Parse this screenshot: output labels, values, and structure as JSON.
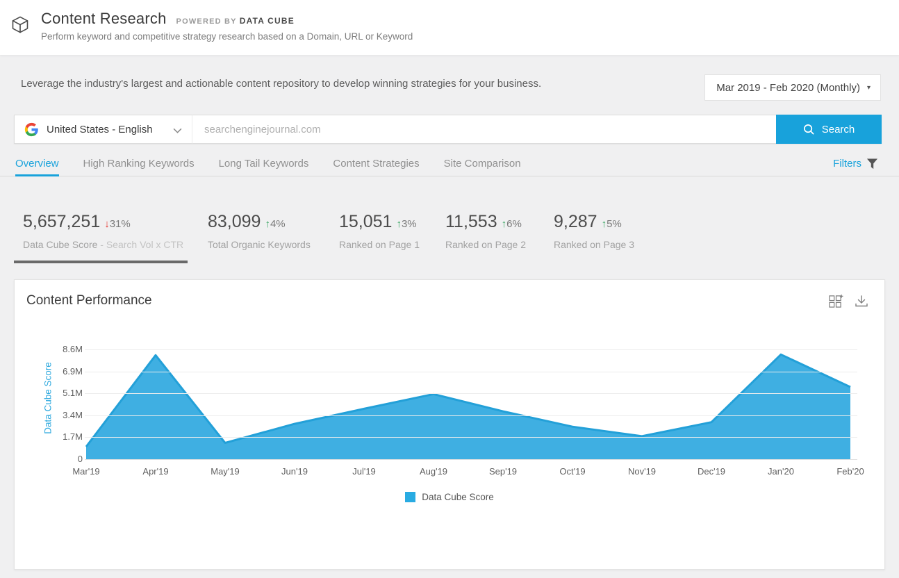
{
  "header": {
    "title": "Content Research",
    "powered_by_prefix": "POWERED BY",
    "powered_by_brand": "DATA CUBE",
    "subtitle": "Perform keyword and competitive strategy research based on a Domain, URL or Keyword"
  },
  "intro": {
    "text": "Leverage the industry's largest and actionable content repository to develop winning strategies for your business.",
    "date_range": "Mar 2019 - Feb 2020 (Monthly)"
  },
  "search": {
    "locale": "United States - English",
    "placeholder": "searchenginejournal.com",
    "button_label": "Search"
  },
  "tabs": [
    {
      "label": "Overview",
      "active": true
    },
    {
      "label": "High Ranking Keywords",
      "active": false
    },
    {
      "label": "Long Tail Keywords",
      "active": false
    },
    {
      "label": "Content Strategies",
      "active": false
    },
    {
      "label": "Site Comparison",
      "active": false
    }
  ],
  "filters_label": "Filters",
  "stats": [
    {
      "value": "5,657,251",
      "arrow": "↓",
      "delta": "31%",
      "direction": "down",
      "label": "Data Cube Score",
      "sublabel": "- Search Vol x CTR",
      "active": true
    },
    {
      "value": "83,099",
      "arrow": "↑",
      "delta": "4%",
      "direction": "up",
      "label": "Total Organic Keywords",
      "active": false
    },
    {
      "value": "15,051",
      "arrow": "↑",
      "delta": "3%",
      "direction": "up",
      "label": "Ranked on Page 1",
      "active": false
    },
    {
      "value": "11,553",
      "arrow": "↑",
      "delta": "6%",
      "direction": "up",
      "label": "Ranked on Page 2",
      "active": false
    },
    {
      "value": "9,287",
      "arrow": "↑",
      "delta": "5%",
      "direction": "up",
      "label": "Ranked on Page 3",
      "active": false
    }
  ],
  "chart_card": {
    "title": "Content Performance"
  },
  "chart_data": {
    "type": "area",
    "title": "Content Performance",
    "x": [
      "Mar'19",
      "Apr'19",
      "May'19",
      "Jun'19",
      "Jul'19",
      "Aug'19",
      "Sep'19",
      "Oct'19",
      "Nov'19",
      "Dec'19",
      "Jan'20",
      "Feb'20"
    ],
    "series": [
      {
        "name": "Data Cube Score",
        "values": [
          980000,
          8150000,
          1280000,
          2770000,
          3950000,
          5100000,
          3750000,
          2550000,
          1800000,
          2900000,
          8200000,
          5657251
        ]
      }
    ],
    "ylabel": "Data Cube Score",
    "xlabel": "",
    "yticks": [
      "0",
      "1.7M",
      "3.4M",
      "5.1M",
      "6.9M",
      "8.6M"
    ],
    "ytick_values": [
      0,
      1700000,
      3400000,
      5100000,
      6900000,
      8600000
    ],
    "ylim": [
      0,
      9500000
    ],
    "grid": true,
    "legend_position": "bottom"
  },
  "colors": {
    "accent": "#18a2db",
    "chart_fill": "#3fafe2",
    "chart_stroke": "#23a0d8",
    "legend_blue": "#29abe2",
    "axis_label_blue": "#2fa9de",
    "up_green": "#2fa35c",
    "down_red": "#e5322c"
  }
}
